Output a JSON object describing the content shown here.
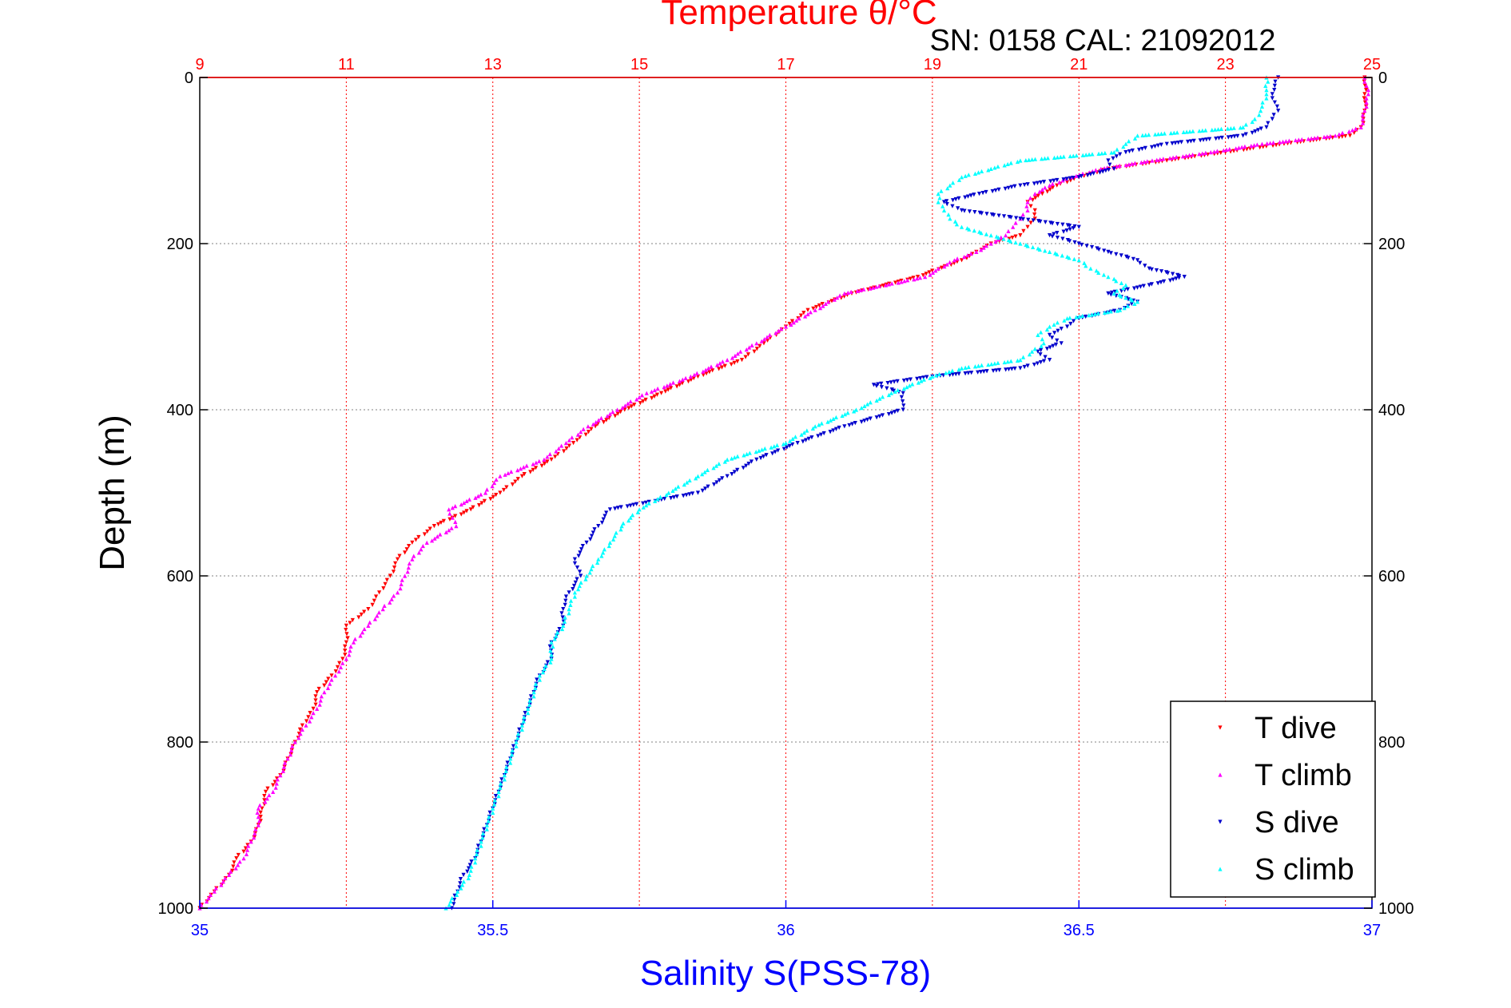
{
  "chart_data": {
    "type": "scatter",
    "title": "Temperature θ/°C",
    "subtitle": "SN: 0158  CAL: 21092012",
    "ylabel": "Depth (m)",
    "xlabel_bottom": "Salinity S(PSS-78)",
    "xlabel_top": "Temperature θ/°C",
    "y_reversed": true,
    "ylim": [
      0,
      1000
    ],
    "yticks": [
      "0",
      "200",
      "400",
      "600",
      "800",
      "1000"
    ],
    "xlim_temperature": [
      9,
      25
    ],
    "xticks_temperature": [
      "9",
      "11",
      "13",
      "15",
      "17",
      "19",
      "21",
      "23",
      "25"
    ],
    "xlim_salinity": [
      35,
      37
    ],
    "xticks_salinity": [
      "35",
      "35.5",
      "36",
      "36.5",
      "37"
    ],
    "grid": true,
    "legend_position": "bottom-right",
    "colors": {
      "temperature_axis": "#ff0000",
      "salinity_axis": "#0000ff",
      "grid": "#808080",
      "t_dive": "#ff0000",
      "t_climb": "#ff00ff",
      "s_dive": "#0000cc",
      "s_climb": "#00ffff"
    },
    "series": [
      {
        "name": "T dive",
        "axis": "temperature",
        "color": "#ff0000",
        "depth": [
          0,
          20,
          40,
          60,
          70,
          80,
          90,
          100,
          110,
          120,
          130,
          140,
          150,
          160,
          170,
          180,
          190,
          200,
          210,
          220,
          240,
          260,
          280,
          300,
          320,
          340,
          360,
          380,
          400,
          420,
          440,
          460,
          480,
          500,
          520,
          540,
          560,
          580,
          600,
          620,
          640,
          660,
          680,
          700,
          720,
          740,
          760,
          780,
          800,
          820,
          840,
          860,
          880,
          900,
          920,
          940,
          960,
          980,
          1000
        ],
        "values": [
          24.9,
          24.9,
          24.9,
          24.85,
          24.7,
          23.8,
          23.0,
          22.2,
          21.4,
          21.0,
          20.7,
          20.5,
          20.3,
          20.4,
          20.4,
          20.3,
          20.2,
          19.8,
          19.6,
          19.4,
          18.8,
          17.9,
          17.3,
          17.0,
          16.7,
          16.4,
          15.8,
          15.3,
          14.8,
          14.4,
          14.1,
          13.8,
          13.4,
          13.1,
          12.7,
          12.2,
          11.9,
          11.7,
          11.6,
          11.45,
          11.3,
          11.0,
          11.0,
          10.95,
          10.8,
          10.6,
          10.55,
          10.4,
          10.3,
          10.2,
          10.1,
          9.9,
          9.85,
          9.8,
          9.7,
          9.5,
          9.4,
          9.2,
          9.0
        ]
      },
      {
        "name": "T climb",
        "axis": "temperature",
        "color": "#ff00ff",
        "depth": [
          0,
          20,
          40,
          60,
          70,
          80,
          90,
          100,
          110,
          120,
          130,
          140,
          150,
          160,
          170,
          180,
          190,
          200,
          210,
          220,
          240,
          260,
          280,
          300,
          320,
          340,
          360,
          380,
          400,
          420,
          440,
          460,
          480,
          500,
          520,
          540,
          560,
          580,
          600,
          620,
          640,
          660,
          680,
          700,
          720,
          740,
          760,
          780,
          800,
          820,
          840,
          860,
          880,
          900,
          920,
          940,
          960,
          980,
          1000
        ],
        "values": [
          24.9,
          24.95,
          24.9,
          24.85,
          24.5,
          23.5,
          22.8,
          22.0,
          21.3,
          20.9,
          20.6,
          20.4,
          20.3,
          20.3,
          20.2,
          20.1,
          20.0,
          19.8,
          19.6,
          19.3,
          18.9,
          17.8,
          17.4,
          17.0,
          16.6,
          16.2,
          15.7,
          15.1,
          14.7,
          14.3,
          14.0,
          13.7,
          13.1,
          12.9,
          12.4,
          12.5,
          12.1,
          11.9,
          11.8,
          11.7,
          11.5,
          11.3,
          11.1,
          11.0,
          10.85,
          10.7,
          10.6,
          10.45,
          10.3,
          10.2,
          10.1,
          10.0,
          9.8,
          9.8,
          9.7,
          9.6,
          9.4,
          9.2,
          9.0
        ]
      },
      {
        "name": "S dive",
        "axis": "salinity",
        "color": "#0000cc",
        "depth": [
          0,
          20,
          40,
          50,
          60,
          70,
          80,
          90,
          100,
          110,
          120,
          130,
          140,
          150,
          160,
          170,
          180,
          190,
          200,
          210,
          220,
          230,
          240,
          250,
          260,
          270,
          280,
          290,
          300,
          310,
          320,
          330,
          340,
          350,
          360,
          370,
          380,
          400,
          420,
          440,
          460,
          480,
          500,
          520,
          540,
          560,
          580,
          600,
          620,
          640,
          660,
          680,
          700,
          720,
          740,
          760,
          780,
          800,
          820,
          840,
          860,
          880,
          900,
          920,
          940,
          960,
          980,
          1000
        ],
        "values": [
          36.84,
          36.83,
          36.84,
          36.83,
          36.82,
          36.78,
          36.65,
          36.58,
          36.55,
          36.56,
          36.5,
          36.4,
          36.33,
          36.27,
          36.3,
          36.4,
          36.5,
          36.45,
          36.5,
          36.55,
          36.6,
          36.62,
          36.68,
          36.62,
          36.55,
          36.6,
          36.57,
          36.5,
          36.48,
          36.45,
          36.47,
          36.43,
          36.45,
          36.4,
          36.25,
          36.15,
          36.2,
          36.2,
          36.1,
          36.02,
          35.95,
          35.9,
          35.85,
          35.7,
          35.68,
          35.66,
          35.64,
          35.65,
          35.63,
          35.62,
          35.62,
          35.6,
          35.6,
          35.58,
          35.57,
          35.56,
          35.55,
          35.54,
          35.53,
          35.52,
          35.51,
          35.5,
          35.49,
          35.48,
          35.47,
          35.45,
          35.44,
          35.43
        ]
      },
      {
        "name": "S climb",
        "axis": "salinity",
        "color": "#00ffff",
        "depth": [
          0,
          20,
          40,
          50,
          60,
          70,
          80,
          90,
          100,
          110,
          120,
          130,
          140,
          150,
          160,
          170,
          180,
          190,
          200,
          210,
          220,
          230,
          240,
          250,
          260,
          270,
          280,
          290,
          300,
          310,
          320,
          330,
          340,
          350,
          360,
          380,
          400,
          420,
          440,
          460,
          480,
          500,
          520,
          540,
          560,
          580,
          600,
          620,
          640,
          660,
          680,
          700,
          720,
          740,
          760,
          780,
          800,
          820,
          840,
          860,
          880,
          900,
          920,
          940,
          960,
          980,
          1000
        ],
        "values": [
          36.82,
          36.82,
          36.81,
          36.8,
          36.78,
          36.6,
          36.58,
          36.56,
          36.4,
          36.35,
          36.3,
          36.28,
          36.26,
          36.26,
          36.27,
          36.28,
          36.3,
          36.35,
          36.4,
          36.45,
          36.5,
          36.52,
          36.55,
          36.58,
          36.56,
          36.6,
          36.57,
          36.48,
          36.45,
          36.43,
          36.44,
          36.42,
          36.4,
          36.3,
          36.25,
          36.18,
          36.12,
          36.05,
          36.0,
          35.9,
          35.85,
          35.8,
          35.75,
          35.72,
          35.7,
          35.68,
          35.66,
          35.64,
          35.63,
          35.62,
          35.6,
          35.6,
          35.58,
          35.57,
          35.56,
          35.55,
          35.54,
          35.53,
          35.52,
          35.51,
          35.5,
          35.49,
          35.48,
          35.47,
          35.46,
          35.44,
          35.42
        ]
      }
    ]
  }
}
